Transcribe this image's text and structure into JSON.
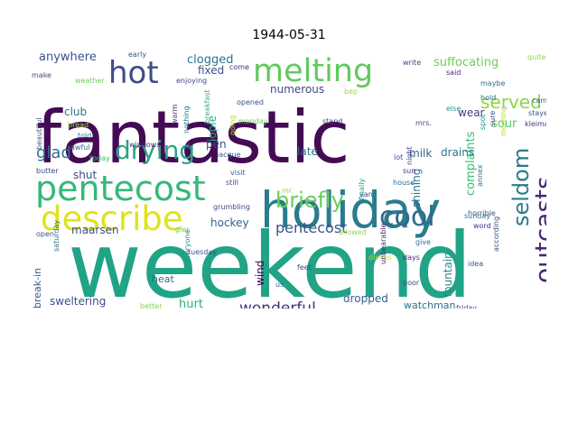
{
  "title": "1944-05-31",
  "words": [
    {
      "text": "weekend",
      "color": "#21a386"
    },
    {
      "text": "fantastic",
      "color": "#440a54"
    },
    {
      "text": "holiday",
      "color": "#2a7b8e"
    },
    {
      "text": "pentecost",
      "color": "#35b878"
    },
    {
      "text": "describe",
      "color": "#dfe31a"
    },
    {
      "text": "melting",
      "color": "#60ca5f"
    },
    {
      "text": "hot",
      "color": "#3e4c8a"
    },
    {
      "text": "drying",
      "color": "#2aa483"
    },
    {
      "text": "cool",
      "color": "#30698e"
    },
    {
      "text": "seldom",
      "color": "#2b7a8e"
    },
    {
      "text": "outcasts",
      "color": "#482677"
    },
    {
      "text": "briefly",
      "color": "#6ccd5a"
    },
    {
      "text": "pentecost",
      "color": "#3a548c"
    },
    {
      "text": "served",
      "color": "#8bd646"
    },
    {
      "text": "wonderful",
      "color": "#46307d"
    },
    {
      "text": "glad",
      "color": "#2d718e"
    },
    {
      "text": "suffocating",
      "color": "#6ece58"
    },
    {
      "text": "complaints",
      "color": "#3dbc74"
    },
    {
      "text": "anywhere",
      "color": "#3a538b"
    },
    {
      "text": "clogged",
      "color": "#2b758e"
    },
    {
      "text": "fixed",
      "color": "#3b528b"
    },
    {
      "text": "numerous",
      "color": "#3f4788"
    },
    {
      "text": "club",
      "color": "#2c728e"
    },
    {
      "text": "jopie",
      "color": "#26ad81"
    },
    {
      "text": "shining",
      "color": "#2a788e"
    },
    {
      "text": "milk",
      "color": "#33638d"
    },
    {
      "text": "late",
      "color": "#2d718e"
    },
    {
      "text": "pen",
      "color": "#414487"
    },
    {
      "text": "shut",
      "color": "#3c4f8a"
    },
    {
      "text": "drains",
      "color": "#2a768e"
    },
    {
      "text": "sour",
      "color": "#58c765"
    },
    {
      "text": "wear",
      "color": "#443a83"
    },
    {
      "text": "maarsen",
      "color": "#3c508b"
    },
    {
      "text": "hockey",
      "color": "#33638d"
    },
    {
      "text": "sweltering",
      "color": "#3d4e8a"
    },
    {
      "text": "hurt",
      "color": "#2ab07f"
    },
    {
      "text": "heat",
      "color": "#31678e"
    },
    {
      "text": "dropped",
      "color": "#355f8d"
    },
    {
      "text": "watchman",
      "color": "#2e6f8e"
    },
    {
      "text": "fountain",
      "color": "#238a8d"
    },
    {
      "text": "wind",
      "color": "#440154"
    },
    {
      "text": "break-in",
      "color": "#355e8d"
    },
    {
      "text": "early",
      "color": "#3b528b"
    },
    {
      "text": "make",
      "color": "#3f4889"
    },
    {
      "text": "weather",
      "color": "#6ece58"
    },
    {
      "text": "enjoying",
      "color": "#3f4788"
    },
    {
      "text": "come",
      "color": "#472d7b"
    },
    {
      "text": "write",
      "color": "#424186"
    },
    {
      "text": "quite",
      "color": "#90d743"
    },
    {
      "text": "said",
      "color": "#482878"
    },
    {
      "text": "maybe",
      "color": "#2c728e"
    },
    {
      "text": "bep",
      "color": "#9bd93c"
    },
    {
      "text": "hold",
      "color": "#31688e"
    },
    {
      "text": "came",
      "color": "#39568c"
    },
    {
      "text": "stayed",
      "color": "#39558c"
    },
    {
      "text": "kleiman",
      "color": "#46317e"
    },
    {
      "text": "spot",
      "color": "#20928c"
    },
    {
      "text": "morning",
      "color": "#a8db34"
    },
    {
      "text": "sure",
      "color": "#3e4a89"
    },
    {
      "text": "mrs.",
      "color": "#3f4889"
    },
    {
      "text": "else",
      "color": "#20928c"
    },
    {
      "text": "annex",
      "color": "#2e6e8e"
    },
    {
      "text": "afternoon",
      "color": "#2e6e8e"
    },
    {
      "text": "beautiful",
      "color": "#38588c"
    },
    {
      "text": "bread",
      "color": "#90d743"
    },
    {
      "text": "told",
      "color": "#25838e"
    },
    {
      "text": "awful",
      "color": "#31688e"
    },
    {
      "text": "today",
      "color": "#3dbc74"
    },
    {
      "text": "windows",
      "color": "#472f7d"
    },
    {
      "text": "d.",
      "color": "#3b528b"
    },
    {
      "text": "warm",
      "color": "#472c7a"
    },
    {
      "text": "nothing",
      "color": "#2a788e"
    },
    {
      "text": "breakfast",
      "color": "#2db27d"
    },
    {
      "text": "opened",
      "color": "#3b528b"
    },
    {
      "text": "monday",
      "color": "#6ece58"
    },
    {
      "text": "going",
      "color": "#b5de2b"
    },
    {
      "text": "stand",
      "color": "#414487"
    },
    {
      "text": "jacque",
      "color": "#38588c"
    },
    {
      "text": "visit",
      "color": "#35608d"
    },
    {
      "text": "lot",
      "color": "#3b528b"
    },
    {
      "text": "night",
      "color": "#414487"
    },
    {
      "text": "finally",
      "color": "#1f9e89"
    },
    {
      "text": "sun",
      "color": "#46327e"
    },
    {
      "text": "house",
      "color": "#30698e"
    },
    {
      "text": "butter",
      "color": "#3e4a89"
    },
    {
      "text": "still",
      "color": "#3f4788"
    },
    {
      "text": "grumbling",
      "color": "#3f4788"
    },
    {
      "text": "mr.",
      "color": "#90d743"
    },
    {
      "text": "van",
      "color": "#3b528b"
    },
    {
      "text": "horrible",
      "color": "#3b528b"
    },
    {
      "text": "sunday",
      "color": "#2a788e"
    },
    {
      "text": "word",
      "color": "#46327e"
    },
    {
      "text": "according",
      "color": "#3b528b"
    },
    {
      "text": "open",
      "color": "#39568c"
    },
    {
      "text": "saturday",
      "color": "#2e6f8e"
    },
    {
      "text": "gies",
      "color": "#7ad151"
    },
    {
      "text": "allowed",
      "color": "#8fd744"
    },
    {
      "text": "give",
      "color": "#2d708e"
    },
    {
      "text": "days",
      "color": "#472d7b"
    },
    {
      "text": "idea",
      "color": "#3b528b"
    },
    {
      "text": "everyone",
      "color": "#1f988b"
    },
    {
      "text": "tuesday",
      "color": "#3d4e8a"
    },
    {
      "text": "feet",
      "color": "#414487"
    },
    {
      "text": "dishes",
      "color": "#c2df23"
    },
    {
      "text": "unbearable",
      "color": "#482576"
    },
    {
      "text": "poor",
      "color": "#3e4a89"
    },
    {
      "text": "friday",
      "color": "#3b528b"
    },
    {
      "text": "better",
      "color": "#7ad151"
    },
    {
      "text": "us",
      "color": "#2e6e8e"
    }
  ]
}
